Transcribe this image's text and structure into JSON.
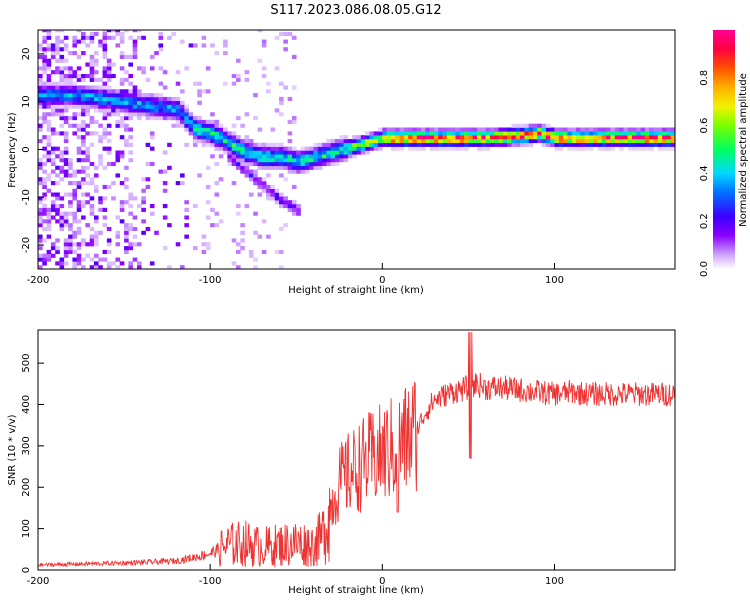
{
  "title": "S117.2023.086.08.05.G12",
  "chart_data": [
    {
      "type": "heatmap",
      "xlabel": "Height of straight line (km)",
      "ylabel": "Frequency (Hz)",
      "xlim": [
        -200,
        170
      ],
      "ylim": [
        -25,
        25
      ],
      "xticks": [
        "-200",
        "-100",
        "0",
        "100"
      ],
      "yticks": [
        "-20",
        "-10",
        "0",
        "10",
        "20"
      ],
      "colorbar": {
        "label": "Normalized spectral amplitude",
        "range": [
          0,
          1
        ],
        "ticks": [
          "0.0",
          "0.2",
          "0.4",
          "0.6",
          "0.8"
        ]
      },
      "ridge": {
        "x": [
          -180,
          -160,
          -140,
          -120,
          -110,
          -100,
          -90,
          -80,
          -70,
          -60,
          -50,
          -40,
          -30,
          -20,
          -10,
          0,
          20,
          40,
          60,
          80,
          90,
          100,
          120,
          150,
          170
        ],
        "y": [
          11,
          10,
          9,
          8,
          4,
          3,
          1,
          -1,
          -2,
          -2,
          -3,
          -2,
          -1,
          0,
          1,
          2,
          2,
          2,
          2,
          2.5,
          3,
          2,
          2,
          2,
          2
        ]
      },
      "branch": {
        "x": [
          -90,
          -80,
          -70,
          -60,
          -50
        ],
        "y": [
          -2,
          -5,
          -8,
          -11,
          -13
        ]
      }
    },
    {
      "type": "line",
      "xlabel": "Height of straight line (km)",
      "ylabel": "SNR (10 * v/v)",
      "xlim": [
        -200,
        170
      ],
      "ylim": [
        0,
        580
      ],
      "xticks": [
        "-200",
        "-100",
        "0",
        "100"
      ],
      "yticks": [
        "0",
        "100",
        "200",
        "300",
        "400",
        "500"
      ],
      "color": "#ee3333",
      "x": [
        -200,
        -180,
        -160,
        -140,
        -120,
        -110,
        -100,
        -90,
        -80,
        -70,
        -60,
        -50,
        -40,
        -35,
        -30,
        -25,
        -20,
        -10,
        0,
        10,
        20,
        25,
        30,
        40,
        50,
        55,
        60,
        70,
        80,
        90,
        100,
        110,
        120,
        140,
        170
      ],
      "y": [
        12,
        14,
        16,
        18,
        22,
        30,
        40,
        60,
        65,
        55,
        60,
        65,
        60,
        80,
        150,
        210,
        230,
        260,
        280,
        300,
        340,
        380,
        410,
        430,
        440,
        450,
        440,
        440,
        435,
        430,
        425,
        430,
        425,
        425,
        425
      ]
    }
  ]
}
